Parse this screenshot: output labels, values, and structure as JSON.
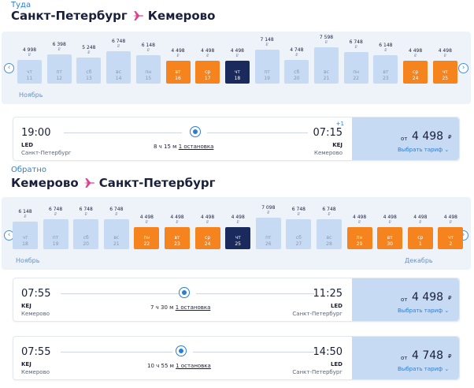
{
  "outbound": {
    "label": "Туда",
    "from": "Санкт-Петербург",
    "to": "Кемерово",
    "month": "Ноябрь",
    "days": [
      {
        "dow": "чт",
        "day": "11",
        "price": "4 998",
        "level": 0.5,
        "kind": "light"
      },
      {
        "dow": "пт",
        "day": "12",
        "price": "6 398",
        "level": 0.62,
        "kind": "light"
      },
      {
        "dow": "сб",
        "day": "13",
        "price": "5 248",
        "level": 0.55,
        "kind": "light"
      },
      {
        "dow": "вс",
        "day": "14",
        "price": "6 748",
        "level": 0.68,
        "kind": "light"
      },
      {
        "dow": "пн",
        "day": "15",
        "price": "6 148",
        "level": 0.6,
        "kind": "light"
      },
      {
        "dow": "вт",
        "day": "16",
        "price": "4 498",
        "level": 0.48,
        "kind": "orange"
      },
      {
        "dow": "ср",
        "day": "17",
        "price": "4 498",
        "level": 0.48,
        "kind": "orange"
      },
      {
        "dow": "чт",
        "day": "18",
        "price": "4 498",
        "level": 0.48,
        "kind": "dark"
      },
      {
        "dow": "пт",
        "day": "19",
        "price": "7 148",
        "level": 0.72,
        "kind": "light"
      },
      {
        "dow": "сб",
        "day": "20",
        "price": "4 748",
        "level": 0.5,
        "kind": "light"
      },
      {
        "dow": "вс",
        "day": "21",
        "price": "7 598",
        "level": 0.76,
        "kind": "light"
      },
      {
        "dow": "пн",
        "day": "22",
        "price": "6 748",
        "level": 0.66,
        "kind": "light"
      },
      {
        "dow": "вт",
        "day": "23",
        "price": "6 148",
        "level": 0.6,
        "kind": "light"
      },
      {
        "dow": "ср",
        "day": "24",
        "price": "4 498",
        "level": 0.48,
        "kind": "orange"
      },
      {
        "dow": "чт",
        "day": "25",
        "price": "4 498",
        "level": 0.48,
        "kind": "orange"
      }
    ],
    "flight": {
      "dep_time": "19:00",
      "dep_code": "LED",
      "dep_city": "Санкт-Петербург",
      "arr_time": "07:15",
      "arr_code": "KEJ",
      "arr_city": "Кемерово",
      "plus_day": "+1",
      "duration": "8 ч 15 м",
      "stops": "1 остановка",
      "from_label": "от",
      "price": "4 498",
      "currency": "₽",
      "choose": "Выбрать тариф"
    }
  },
  "inbound": {
    "label": "Обратно",
    "from": "Кемерово",
    "to": "Санкт-Петербург",
    "month_left": "Ноябрь",
    "month_right": "Декабрь",
    "days": [
      {
        "dow": "чт",
        "day": "18",
        "price": "6 148",
        "level": 0.62,
        "kind": "light"
      },
      {
        "dow": "пт",
        "day": "19",
        "price": "6 748",
        "level": 0.68,
        "kind": "light"
      },
      {
        "dow": "сб",
        "day": "20",
        "price": "6 748",
        "level": 0.68,
        "kind": "light"
      },
      {
        "dow": "вс",
        "day": "21",
        "price": "6 748",
        "level": 0.68,
        "kind": "light"
      },
      {
        "dow": "пн",
        "day": "22",
        "price": "4 498",
        "level": 0.5,
        "kind": "orange"
      },
      {
        "dow": "вт",
        "day": "23",
        "price": "4 498",
        "level": 0.5,
        "kind": "orange"
      },
      {
        "dow": "ср",
        "day": "24",
        "price": "4 498",
        "level": 0.5,
        "kind": "orange"
      },
      {
        "dow": "чт",
        "day": "25",
        "price": "4 498",
        "level": 0.5,
        "kind": "dark"
      },
      {
        "dow": "пт",
        "day": "26",
        "price": "7 098",
        "level": 0.72,
        "kind": "light"
      },
      {
        "dow": "сб",
        "day": "27",
        "price": "6 748",
        "level": 0.68,
        "kind": "light"
      },
      {
        "dow": "вс",
        "day": "28",
        "price": "6 748",
        "level": 0.68,
        "kind": "light"
      },
      {
        "dow": "пн",
        "day": "29",
        "price": "4 498",
        "level": 0.5,
        "kind": "orange"
      },
      {
        "dow": "вт",
        "day": "30",
        "price": "4 498",
        "level": 0.5,
        "kind": "orange"
      },
      {
        "dow": "ср",
        "day": "1",
        "price": "4 498",
        "level": 0.5,
        "kind": "orange"
      },
      {
        "dow": "чт",
        "day": "2",
        "price": "4 498",
        "level": 0.5,
        "kind": "orange"
      }
    ],
    "flights": [
      {
        "dep_time": "07:55",
        "dep_code": "KEJ",
        "dep_city": "Кемерово",
        "arr_time": "11:25",
        "arr_code": "LED",
        "arr_city": "Санкт-Петербург",
        "duration": "7 ч 30 м",
        "stops": "1 остановка",
        "from_label": "от",
        "price": "4 498",
        "currency": "₽",
        "choose": "Выбрать тариф"
      },
      {
        "dep_time": "07:55",
        "dep_code": "KEJ",
        "dep_city": "Кемерово",
        "arr_time": "14:50",
        "arr_code": "LED",
        "arr_city": "Санкт-Петербург",
        "duration": "10 ч 55 м",
        "stops": "1 остановка",
        "from_label": "от",
        "price": "4 748",
        "currency": "₽",
        "choose": "Выбрать тариф"
      }
    ]
  },
  "colors": {
    "accent": "#2a7fd4",
    "orange": "#f5841f",
    "selected": "#1b2a5c",
    "light_bar": "#c7daf4",
    "plane": "#e0408c"
  },
  "icons": {
    "plane": "airplane-icon",
    "prev": "chevron-left-icon",
    "next": "chevron-right-icon",
    "dropdown": "chevron-down-icon",
    "stop": "stop-dot-icon"
  }
}
